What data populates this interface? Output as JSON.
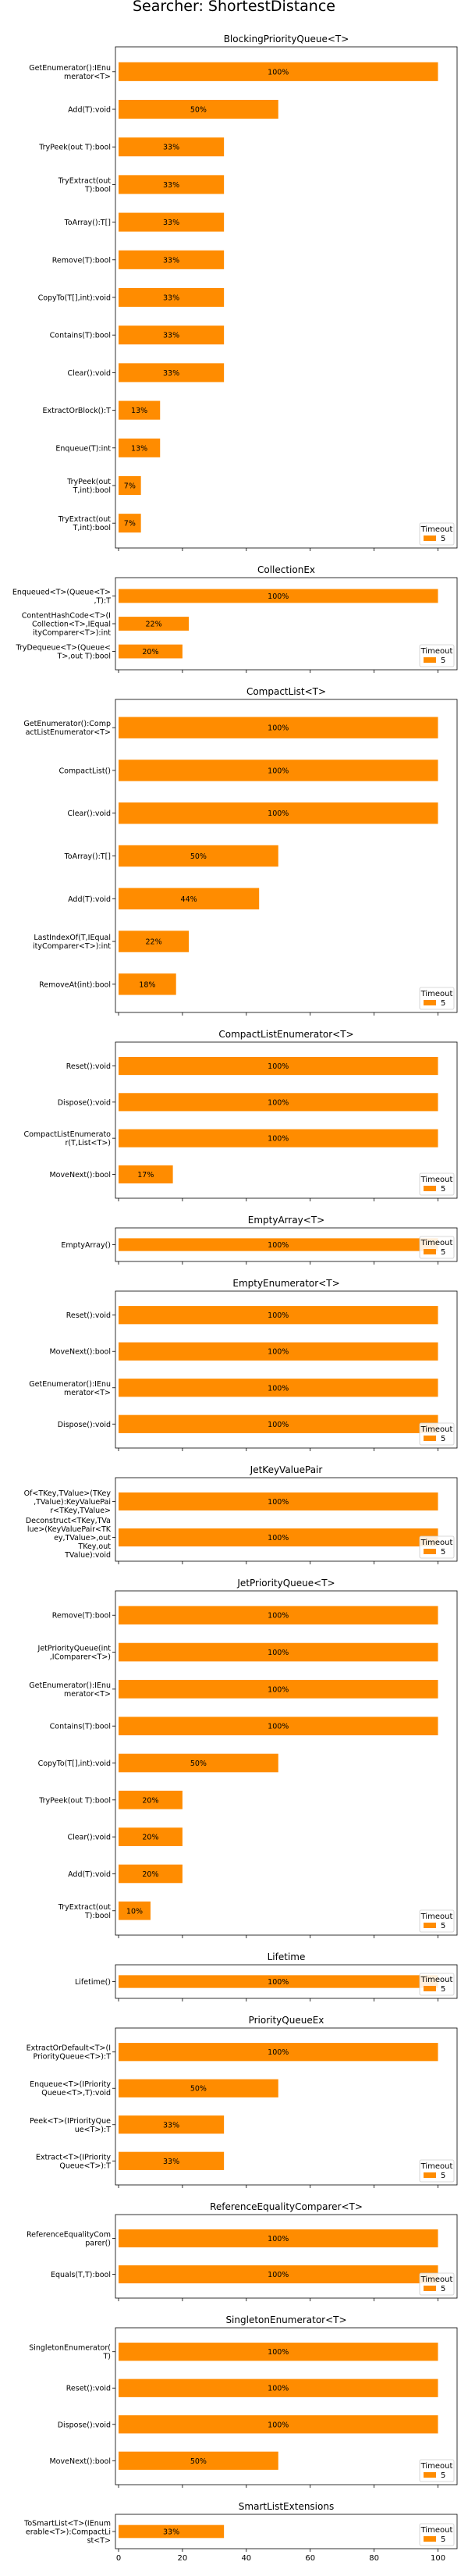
{
  "figure": {
    "title": "Searcher: ShortestDistance",
    "x_ticks": [
      "0",
      "20",
      "40",
      "60",
      "80",
      "100"
    ],
    "legend_title": "Timeout",
    "legend_label": "5",
    "bar_color": "#ff8c00"
  },
  "chart_data": [
    {
      "type": "bar",
      "orientation": "horizontal",
      "title": "BlockingPriorityQueue<T>",
      "xlim": [
        0,
        100
      ],
      "series": [
        {
          "name": "5"
        }
      ],
      "categories": [
        [
          "GetEnumerator():IEnu",
          "merator<T>"
        ],
        [
          "Add(T):void"
        ],
        [
          "TryPeek(out T):bool"
        ],
        [
          "TryExtract(out",
          "T):bool"
        ],
        [
          "ToArray():T[]"
        ],
        [
          "Remove(T):bool"
        ],
        [
          "CopyTo(T[],int):void"
        ],
        [
          "Contains(T):bool"
        ],
        [
          "Clear():void"
        ],
        [
          "ExtractOrBlock():T"
        ],
        [
          "Enqueue(T):int"
        ],
        [
          "TryPeek(out",
          "T,int):bool"
        ],
        [
          "TryExtract(out",
          "T,int):bool"
        ]
      ],
      "values": [
        100,
        50,
        33,
        33,
        33,
        33,
        33,
        33,
        33,
        13,
        13,
        7,
        7
      ],
      "labels": [
        "100%",
        "50%",
        "33%",
        "33%",
        "33%",
        "33%",
        "33%",
        "33%",
        "33%",
        "13%",
        "13%",
        "7%",
        "7%"
      ]
    },
    {
      "type": "bar",
      "orientation": "horizontal",
      "title": "CollectionEx",
      "xlim": [
        0,
        100
      ],
      "series": [
        {
          "name": "5"
        }
      ],
      "categories": [
        [
          "Enqueued<T>(Queue<T>",
          ",T):T"
        ],
        [
          "ContentHashCode<T>(I",
          "Collection<T>,IEqual",
          "ityComparer<T>):int"
        ],
        [
          "TryDequeue<T>(Queue<",
          "T>,out T):bool"
        ]
      ],
      "values": [
        100,
        22,
        20
      ],
      "labels": [
        "100%",
        "22%",
        "20%"
      ]
    },
    {
      "type": "bar",
      "orientation": "horizontal",
      "title": "CompactList<T>",
      "xlim": [
        0,
        100
      ],
      "series": [
        {
          "name": "5"
        }
      ],
      "categories": [
        [
          "GetEnumerator():Comp",
          "actListEnumerator<T>"
        ],
        [
          "CompactList()"
        ],
        [
          "Clear():void"
        ],
        [
          "ToArray():T[]"
        ],
        [
          "Add(T):void"
        ],
        [
          "LastIndexOf(T,IEqual",
          "ityComparer<T>):int"
        ],
        [
          "RemoveAt(int):bool"
        ]
      ],
      "values": [
        100,
        100,
        100,
        50,
        44,
        22,
        18
      ],
      "labels": [
        "100%",
        "100%",
        "100%",
        "50%",
        "44%",
        "22%",
        "18%"
      ]
    },
    {
      "type": "bar",
      "orientation": "horizontal",
      "title": "CompactListEnumerator<T>",
      "xlim": [
        0,
        100
      ],
      "series": [
        {
          "name": "5"
        }
      ],
      "categories": [
        [
          "Reset():void"
        ],
        [
          "Dispose():void"
        ],
        [
          "CompactListEnumerato",
          "r(T,List<T>)"
        ],
        [
          "MoveNext():bool"
        ]
      ],
      "values": [
        100,
        100,
        100,
        17
      ],
      "labels": [
        "100%",
        "100%",
        "100%",
        "17%"
      ]
    },
    {
      "type": "bar",
      "orientation": "horizontal",
      "title": "EmptyArray<T>",
      "xlim": [
        0,
        100
      ],
      "series": [
        {
          "name": "5"
        }
      ],
      "categories": [
        [
          "EmptyArray()"
        ]
      ],
      "values": [
        100
      ],
      "labels": [
        "100%"
      ]
    },
    {
      "type": "bar",
      "orientation": "horizontal",
      "title": "EmptyEnumerator<T>",
      "xlim": [
        0,
        100
      ],
      "series": [
        {
          "name": "5"
        }
      ],
      "categories": [
        [
          "Reset():void"
        ],
        [
          "MoveNext():bool"
        ],
        [
          "GetEnumerator():IEnu",
          "merator<T>"
        ],
        [
          "Dispose():void"
        ]
      ],
      "values": [
        100,
        100,
        100,
        100
      ],
      "labels": [
        "100%",
        "100%",
        "100%",
        "100%"
      ]
    },
    {
      "type": "bar",
      "orientation": "horizontal",
      "title": "JetKeyValuePair",
      "xlim": [
        0,
        100
      ],
      "series": [
        {
          "name": "5"
        }
      ],
      "categories": [
        [
          "Of<TKey,TValue>(TKey",
          ",TValue):KeyValuePai",
          "r<TKey,TValue>"
        ],
        [
          "Deconstruct<TKey,TVa",
          "lue>(KeyValuePair<TK",
          "ey,TValue>,out",
          "TKey,out",
          "TValue):void"
        ]
      ],
      "values": [
        100,
        100
      ],
      "labels": [
        "100%",
        "100%"
      ]
    },
    {
      "type": "bar",
      "orientation": "horizontal",
      "title": "JetPriorityQueue<T>",
      "xlim": [
        0,
        100
      ],
      "series": [
        {
          "name": "5"
        }
      ],
      "categories": [
        [
          "Remove(T):bool"
        ],
        [
          "JetPriorityQueue(int",
          ",IComparer<T>)"
        ],
        [
          "GetEnumerator():IEnu",
          "merator<T>"
        ],
        [
          "Contains(T):bool"
        ],
        [
          "CopyTo(T[],int):void"
        ],
        [
          "TryPeek(out T):bool"
        ],
        [
          "Clear():void"
        ],
        [
          "Add(T):void"
        ],
        [
          "TryExtract(out",
          "T):bool"
        ]
      ],
      "values": [
        100,
        100,
        100,
        100,
        50,
        20,
        20,
        20,
        10
      ],
      "labels": [
        "100%",
        "100%",
        "100%",
        "100%",
        "50%",
        "20%",
        "20%",
        "20%",
        "10%"
      ]
    },
    {
      "type": "bar",
      "orientation": "horizontal",
      "title": "Lifetime",
      "xlim": [
        0,
        100
      ],
      "series": [
        {
          "name": "5"
        }
      ],
      "categories": [
        [
          "Lifetime()"
        ]
      ],
      "values": [
        100
      ],
      "labels": [
        "100%"
      ]
    },
    {
      "type": "bar",
      "orientation": "horizontal",
      "title": "PriorityQueueEx",
      "xlim": [
        0,
        100
      ],
      "series": [
        {
          "name": "5"
        }
      ],
      "categories": [
        [
          "ExtractOrDefault<T>(I",
          "PriorityQueue<T>):T"
        ],
        [
          "Enqueue<T>(IPriority",
          "Queue<T>,T):void"
        ],
        [
          "Peek<T>(IPriorityQue",
          "ue<T>):T"
        ],
        [
          "Extract<T>(IPriority",
          "Queue<T>):T"
        ]
      ],
      "values": [
        100,
        50,
        33,
        33
      ],
      "labels": [
        "100%",
        "50%",
        "33%",
        "33%"
      ]
    },
    {
      "type": "bar",
      "orientation": "horizontal",
      "title": "ReferenceEqualityComparer<T>",
      "xlim": [
        0,
        100
      ],
      "series": [
        {
          "name": "5"
        }
      ],
      "categories": [
        [
          "ReferenceEqualityCom",
          "parer()"
        ],
        [
          "Equals(T,T):bool"
        ]
      ],
      "values": [
        100,
        100
      ],
      "labels": [
        "100%",
        "100%"
      ]
    },
    {
      "type": "bar",
      "orientation": "horizontal",
      "title": "SingletonEnumerator<T>",
      "xlim": [
        0,
        100
      ],
      "series": [
        {
          "name": "5"
        }
      ],
      "categories": [
        [
          "SingletonEnumerator(",
          "T)"
        ],
        [
          "Reset():void"
        ],
        [
          "Dispose():void"
        ],
        [
          "MoveNext():bool"
        ]
      ],
      "values": [
        100,
        100,
        100,
        50
      ],
      "labels": [
        "100%",
        "100%",
        "100%",
        "50%"
      ]
    },
    {
      "type": "bar",
      "orientation": "horizontal",
      "title": "SmartListExtensions",
      "xlim": [
        0,
        100
      ],
      "series": [
        {
          "name": "5"
        }
      ],
      "categories": [
        [
          "ToSmartList<T>(IEnum",
          "erable<T>):CompactLi",
          "st<T>"
        ]
      ],
      "values": [
        33
      ],
      "labels": [
        "33%"
      ]
    }
  ]
}
